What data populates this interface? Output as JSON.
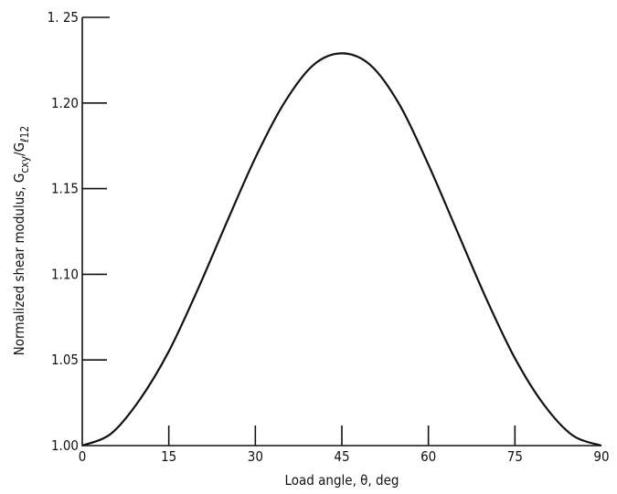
{
  "chart_data": {
    "type": "line",
    "title": "",
    "xlabel": "Load angle, θ, deg",
    "ylabel": {
      "text": "Normalized shear modulus, ",
      "symbol_main": "G",
      "symbol_sub": "cxy",
      "slash": "/",
      "symbol_main2": "G",
      "symbol_sub2": "ℓ12"
    },
    "xlim": [
      0,
      90
    ],
    "ylim": [
      1.0,
      1.25
    ],
    "xticks": [
      0,
      15,
      30,
      45,
      60,
      75,
      90
    ],
    "xtick_labels": [
      "0",
      "15",
      "30",
      "45",
      "60",
      "75",
      "90"
    ],
    "yticks": [
      1.0,
      1.05,
      1.1,
      1.15,
      1.2,
      1.25
    ],
    "ytick_labels": [
      "1.00",
      "1.05",
      "1.10",
      "1.15",
      "1.20",
      "1. 25"
    ],
    "grid": false,
    "series": [
      {
        "x": [
          0,
          5,
          10,
          15,
          20,
          25,
          30,
          35,
          40,
          45,
          50,
          55,
          60,
          65,
          70,
          75,
          80,
          85,
          90
        ],
        "values": [
          1.0,
          1.007,
          1.027,
          1.055,
          1.091,
          1.13,
          1.168,
          1.2,
          1.222,
          1.229,
          1.222,
          1.199,
          1.164,
          1.125,
          1.086,
          1.051,
          1.024,
          1.006,
          1.0
        ]
      }
    ]
  }
}
